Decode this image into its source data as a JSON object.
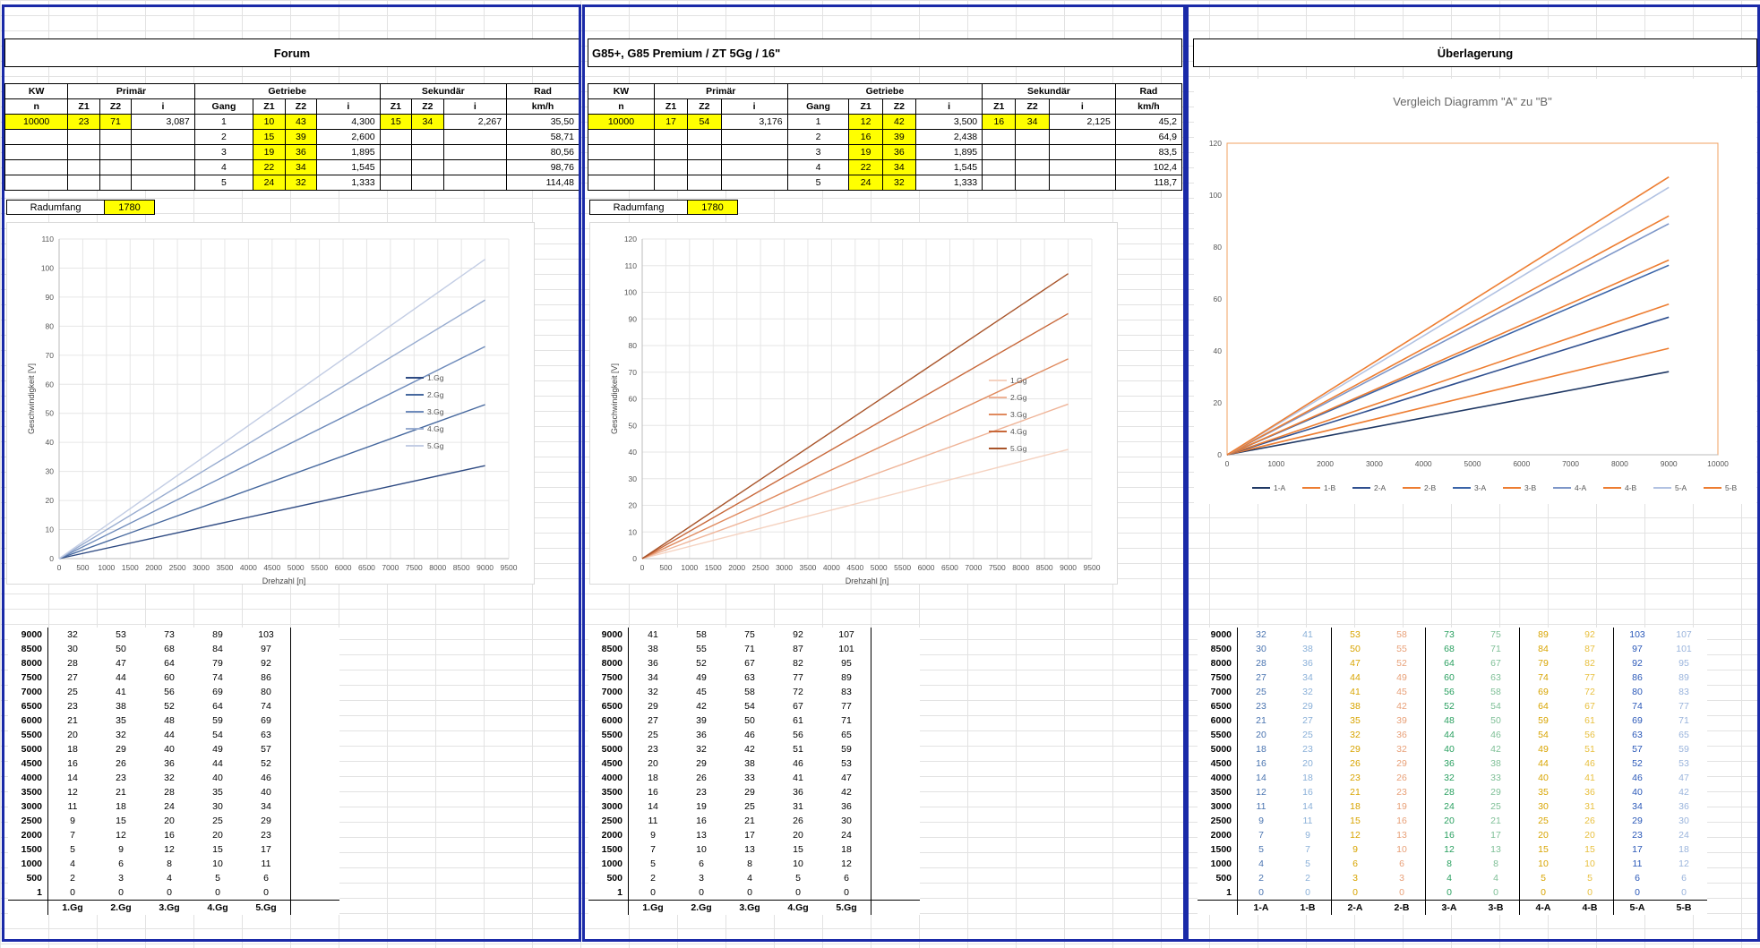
{
  "panels": [
    {
      "title": "Forum",
      "table": {
        "h1": {
          "kw": "KW",
          "prim": "Primär",
          "getr": "Getriebe",
          "sek": "Sekundär",
          "rad": "Rad"
        },
        "h2": {
          "n": "n",
          "z1": "Z1",
          "z2": "Z2",
          "i": "i",
          "gang": "Gang",
          "gz1": "Z1",
          "gz2": "Z2",
          "gi": "i",
          "sz1": "Z1",
          "sz2": "Z2",
          "si": "i",
          "kmh": "km/h"
        },
        "rows": [
          {
            "n": "10000",
            "pz1": "23",
            "pz2": "71",
            "pi": "3,087",
            "gang": "1",
            "z1": "10",
            "z2": "43",
            "i": "4,300",
            "sz1": "15",
            "sz2": "34",
            "si": "2,267",
            "kmh": "35,50"
          },
          {
            "n": "",
            "pz1": "",
            "pz2": "",
            "pi": "",
            "gang": "2",
            "z1": "15",
            "z2": "39",
            "i": "2,600",
            "sz1": "",
            "sz2": "",
            "si": "",
            "kmh": "58,71"
          },
          {
            "n": "",
            "pz1": "",
            "pz2": "",
            "pi": "",
            "gang": "3",
            "z1": "19",
            "z2": "36",
            "i": "1,895",
            "sz1": "",
            "sz2": "",
            "si": "",
            "kmh": "80,56"
          },
          {
            "n": "",
            "pz1": "",
            "pz2": "",
            "pi": "",
            "gang": "4",
            "z1": "22",
            "z2": "34",
            "i": "1,545",
            "sz1": "",
            "sz2": "",
            "si": "",
            "kmh": "98,76"
          },
          {
            "n": "",
            "pz1": "",
            "pz2": "",
            "pi": "",
            "gang": "5",
            "z1": "24",
            "z2": "32",
            "i": "1,333",
            "sz1": "",
            "sz2": "",
            "si": "",
            "kmh": "114,48"
          }
        ]
      },
      "radumfang": {
        "label": "Radumfang",
        "value": "1780"
      },
      "columns": [
        "1.Gg",
        "2.Gg",
        "3.Gg",
        "4.Gg",
        "5.Gg"
      ]
    },
    {
      "title": "G85+, G85 Premium / ZT 5Gg / 16\"",
      "table": {
        "h1": {
          "kw": "KW",
          "prim": "Primär",
          "getr": "Getriebe",
          "sek": "Sekundär",
          "rad": "Rad"
        },
        "h2": {
          "n": "n",
          "z1": "Z1",
          "z2": "Z2",
          "i": "i",
          "gang": "Gang",
          "gz1": "Z1",
          "gz2": "Z2",
          "gi": "i",
          "sz1": "Z1",
          "sz2": "Z2",
          "si": "i",
          "kmh": "km/h"
        },
        "rows": [
          {
            "n": "10000",
            "pz1": "17",
            "pz2": "54",
            "pi": "3,176",
            "gang": "1",
            "z1": "12",
            "z2": "42",
            "i": "3,500",
            "sz1": "16",
            "sz2": "34",
            "si": "2,125",
            "kmh": "45,2"
          },
          {
            "n": "",
            "pz1": "",
            "pz2": "",
            "pi": "",
            "gang": "2",
            "z1": "16",
            "z2": "39",
            "i": "2,438",
            "sz1": "",
            "sz2": "",
            "si": "",
            "kmh": "64,9"
          },
          {
            "n": "",
            "pz1": "",
            "pz2": "",
            "pi": "",
            "gang": "3",
            "z1": "19",
            "z2": "36",
            "i": "1,895",
            "sz1": "",
            "sz2": "",
            "si": "",
            "kmh": "83,5"
          },
          {
            "n": "",
            "pz1": "",
            "pz2": "",
            "pi": "",
            "gang": "4",
            "z1": "22",
            "z2": "34",
            "i": "1,545",
            "sz1": "",
            "sz2": "",
            "si": "",
            "kmh": "102,4"
          },
          {
            "n": "",
            "pz1": "",
            "pz2": "",
            "pi": "",
            "gang": "5",
            "z1": "24",
            "z2": "32",
            "i": "1,333",
            "sz1": "",
            "sz2": "",
            "si": "",
            "kmh": "118,7"
          }
        ]
      },
      "radumfang": {
        "label": "Radumfang",
        "value": "1780"
      },
      "columns": [
        "1.Gg",
        "2.Gg",
        "3.Gg",
        "4.Gg",
        "5.Gg"
      ]
    },
    {
      "title": "Überlagerung",
      "columns": [
        "1-A",
        "1-B",
        "2-A",
        "2-B",
        "3-A",
        "3-B",
        "4-A",
        "4-B",
        "5-A",
        "5-B"
      ]
    }
  ],
  "rpm": [
    "9000",
    "8500",
    "8000",
    "7500",
    "7000",
    "6500",
    "6000",
    "5500",
    "5000",
    "4500",
    "4000",
    "3500",
    "3000",
    "2500",
    "2000",
    "1500",
    "1000",
    "500",
    "1"
  ],
  "tableA": [
    [
      32,
      53,
      73,
      89,
      103
    ],
    [
      30,
      50,
      68,
      84,
      97
    ],
    [
      28,
      47,
      64,
      79,
      92
    ],
    [
      27,
      44,
      60,
      74,
      86
    ],
    [
      25,
      41,
      56,
      69,
      80
    ],
    [
      23,
      38,
      52,
      64,
      74
    ],
    [
      21,
      35,
      48,
      59,
      69
    ],
    [
      20,
      32,
      44,
      54,
      63
    ],
    [
      18,
      29,
      40,
      49,
      57
    ],
    [
      16,
      26,
      36,
      44,
      52
    ],
    [
      14,
      23,
      32,
      40,
      46
    ],
    [
      12,
      21,
      28,
      35,
      40
    ],
    [
      11,
      18,
      24,
      30,
      34
    ],
    [
      9,
      15,
      20,
      25,
      29
    ],
    [
      7,
      12,
      16,
      20,
      23
    ],
    [
      5,
      9,
      12,
      15,
      17
    ],
    [
      4,
      6,
      8,
      10,
      11
    ],
    [
      2,
      3,
      4,
      5,
      6
    ],
    [
      0,
      0,
      0,
      0,
      0
    ]
  ],
  "tableB": [
    [
      41,
      58,
      75,
      92,
      107
    ],
    [
      38,
      55,
      71,
      87,
      101
    ],
    [
      36,
      52,
      67,
      82,
      95
    ],
    [
      34,
      49,
      63,
      77,
      89
    ],
    [
      32,
      45,
      58,
      72,
      83
    ],
    [
      29,
      42,
      54,
      67,
      77
    ],
    [
      27,
      39,
      50,
      61,
      71
    ],
    [
      25,
      36,
      46,
      56,
      65
    ],
    [
      23,
      32,
      42,
      51,
      59
    ],
    [
      20,
      29,
      38,
      46,
      53
    ],
    [
      18,
      26,
      33,
      41,
      47
    ],
    [
      16,
      23,
      29,
      36,
      42
    ],
    [
      14,
      19,
      25,
      31,
      36
    ],
    [
      11,
      16,
      21,
      26,
      30
    ],
    [
      9,
      13,
      17,
      20,
      24
    ],
    [
      7,
      10,
      13,
      15,
      18
    ],
    [
      5,
      6,
      8,
      10,
      12
    ],
    [
      2,
      3,
      4,
      5,
      6
    ],
    [
      0,
      0,
      0,
      0,
      0
    ]
  ],
  "overlay_colors": [
    "#4a74b0",
    "#8ab0d8",
    "#d8a400",
    "#e8a078",
    "#2aa060",
    "#80c098",
    "#d8a400",
    "#e8c040",
    "#2a58b8",
    "#9ab4dc"
  ],
  "chart_data": [
    {
      "type": "line",
      "title": "",
      "xlabel": "Drehzahl [n]",
      "ylabel": "Geschwindigkeit [V]",
      "x": [
        0,
        9000
      ],
      "xlim": [
        0,
        9500
      ],
      "ylim": [
        0,
        110
      ],
      "xticks": [
        "0",
        "500",
        "1000",
        "1500",
        "2000",
        "2500",
        "3000",
        "3500",
        "4000",
        "4500",
        "5000",
        "5500",
        "6000",
        "6500",
        "7000",
        "7500",
        "8000",
        "8500",
        "9000",
        "9500"
      ],
      "yticks": [
        "0",
        "10",
        "20",
        "30",
        "40",
        "50",
        "60",
        "70",
        "80",
        "90",
        "100",
        "110"
      ],
      "legend": "right",
      "series": [
        {
          "name": "1.Gg",
          "values": [
            0,
            32
          ],
          "color": "#2e4a82"
        },
        {
          "name": "2.Gg",
          "values": [
            0,
            53
          ],
          "color": "#46689e"
        },
        {
          "name": "3.Gg",
          "values": [
            0,
            73
          ],
          "color": "#6e8bbb"
        },
        {
          "name": "4.Gg",
          "values": [
            0,
            89
          ],
          "color": "#98acd0"
        },
        {
          "name": "5.Gg",
          "values": [
            0,
            103
          ],
          "color": "#c3cde4"
        }
      ]
    },
    {
      "type": "line",
      "title": "",
      "xlabel": "Drehzahl [n]",
      "ylabel": "Geschwindigkeit [V]",
      "x": [
        0,
        9000
      ],
      "xlim": [
        0,
        9500
      ],
      "ylim": [
        0,
        120
      ],
      "xticks": [
        "0",
        "500",
        "1000",
        "1500",
        "2000",
        "2500",
        "3000",
        "3500",
        "4000",
        "4500",
        "5000",
        "5500",
        "6000",
        "6500",
        "7000",
        "7500",
        "8000",
        "8500",
        "9000",
        "9500"
      ],
      "yticks": [
        "0",
        "10",
        "20",
        "30",
        "40",
        "50",
        "60",
        "70",
        "80",
        "90",
        "100",
        "110",
        "120"
      ],
      "legend": "right",
      "series": [
        {
          "name": "1.Gg",
          "values": [
            0,
            41
          ],
          "color": "#f5d2c0"
        },
        {
          "name": "2.Gg",
          "values": [
            0,
            58
          ],
          "color": "#efb498"
        },
        {
          "name": "3.Gg",
          "values": [
            0,
            75
          ],
          "color": "#e08a5e"
        },
        {
          "name": "4.Gg",
          "values": [
            0,
            92
          ],
          "color": "#c8683a"
        },
        {
          "name": "5.Gg",
          "values": [
            0,
            107
          ],
          "color": "#a8542a"
        }
      ]
    },
    {
      "type": "line",
      "title": "Vergleich Diagramm \"A\" zu \"B\"",
      "xlabel": "",
      "ylabel": "",
      "x": [
        0,
        9000
      ],
      "xlim": [
        0,
        10000
      ],
      "ylim": [
        0,
        120
      ],
      "xticks": [
        "0",
        "1000",
        "2000",
        "3000",
        "4000",
        "5000",
        "6000",
        "7000",
        "8000",
        "9000",
        "10000"
      ],
      "yticks": [
        "0",
        "20",
        "40",
        "60",
        "80",
        "100",
        "120"
      ],
      "legend": "bottom",
      "series": [
        {
          "name": "1-A",
          "values": [
            0,
            32
          ],
          "color": "#1f3864"
        },
        {
          "name": "1-B",
          "values": [
            0,
            41
          ],
          "color": "#ed7d31"
        },
        {
          "name": "2-A",
          "values": [
            0,
            53
          ],
          "color": "#2f4f8f"
        },
        {
          "name": "2-B",
          "values": [
            0,
            58
          ],
          "color": "#ed7d31"
        },
        {
          "name": "3-A",
          "values": [
            0,
            73
          ],
          "color": "#3a64a8"
        },
        {
          "name": "3-B",
          "values": [
            0,
            75
          ],
          "color": "#ed7d31"
        },
        {
          "name": "4-A",
          "values": [
            0,
            89
          ],
          "color": "#7d96c8"
        },
        {
          "name": "4-B",
          "values": [
            0,
            92
          ],
          "color": "#ed7d31"
        },
        {
          "name": "5-A",
          "values": [
            0,
            103
          ],
          "color": "#b2c2e2"
        },
        {
          "name": "5-B",
          "values": [
            0,
            107
          ],
          "color": "#ed7d31"
        }
      ]
    }
  ]
}
